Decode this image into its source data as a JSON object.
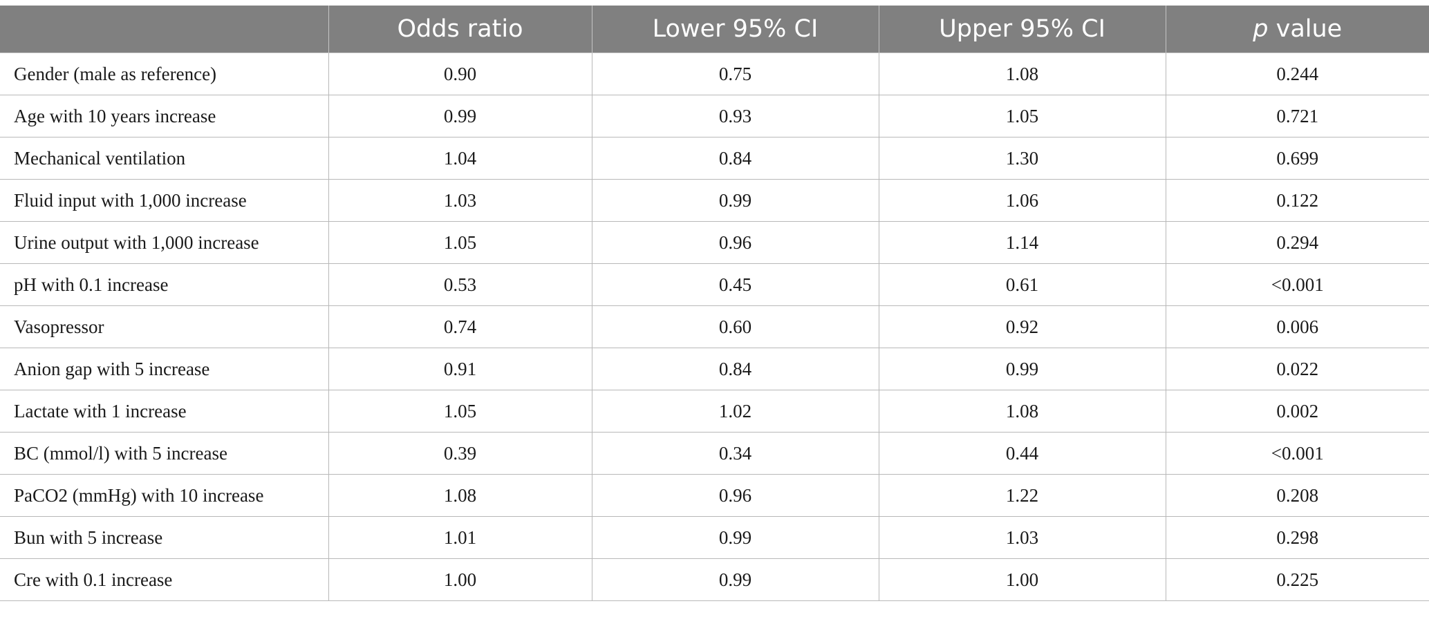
{
  "table": {
    "headers": {
      "variable": "",
      "odds_ratio": "Odds ratio",
      "lower_ci": "Lower 95% CI",
      "upper_ci": "Upper 95% CI",
      "p_value_symbol": "p",
      "p_value_word": " value"
    },
    "rows": [
      {
        "label": "Gender (male as reference)",
        "or": "0.90",
        "lower": "0.75",
        "upper": "1.08",
        "p": "0.244"
      },
      {
        "label": "Age with 10 years increase",
        "or": "0.99",
        "lower": "0.93",
        "upper": "1.05",
        "p": "0.721"
      },
      {
        "label": "Mechanical ventilation",
        "or": "1.04",
        "lower": "0.84",
        "upper": "1.30",
        "p": "0.699"
      },
      {
        "label": "Fluid input with 1,000 increase",
        "or": "1.03",
        "lower": "0.99",
        "upper": "1.06",
        "p": "0.122"
      },
      {
        "label": "Urine output with 1,000 increase",
        "or": "1.05",
        "lower": "0.96",
        "upper": "1.14",
        "p": "0.294"
      },
      {
        "label": "pH with 0.1 increase",
        "or": "0.53",
        "lower": "0.45",
        "upper": "0.61",
        "p": "<0.001"
      },
      {
        "label": "Vasopressor",
        "or": "0.74",
        "lower": "0.60",
        "upper": "0.92",
        "p": "0.006"
      },
      {
        "label": "Anion gap with 5 increase",
        "or": "0.91",
        "lower": "0.84",
        "upper": "0.99",
        "p": "0.022"
      },
      {
        "label": "Lactate with 1 increase",
        "or": "1.05",
        "lower": "1.02",
        "upper": "1.08",
        "p": "0.002"
      },
      {
        "label": "BC (mmol/l) with 5 increase",
        "or": "0.39",
        "lower": "0.34",
        "upper": "0.44",
        "p": "<0.001"
      },
      {
        "label": "PaCO2 (mmHg) with 10 increase",
        "or": "1.08",
        "lower": "0.96",
        "upper": "1.22",
        "p": "0.208"
      },
      {
        "label": "Bun with 5 increase",
        "or": "1.01",
        "lower": "0.99",
        "upper": "1.03",
        "p": "0.298"
      },
      {
        "label": "Cre with 0.1 increase",
        "or": "1.00",
        "lower": "0.99",
        "upper": "1.00",
        "p": "0.225"
      }
    ]
  },
  "colors": {
    "header_bg": "#808080",
    "header_text": "#ffffff",
    "grid_line": "#b8b8b8"
  }
}
